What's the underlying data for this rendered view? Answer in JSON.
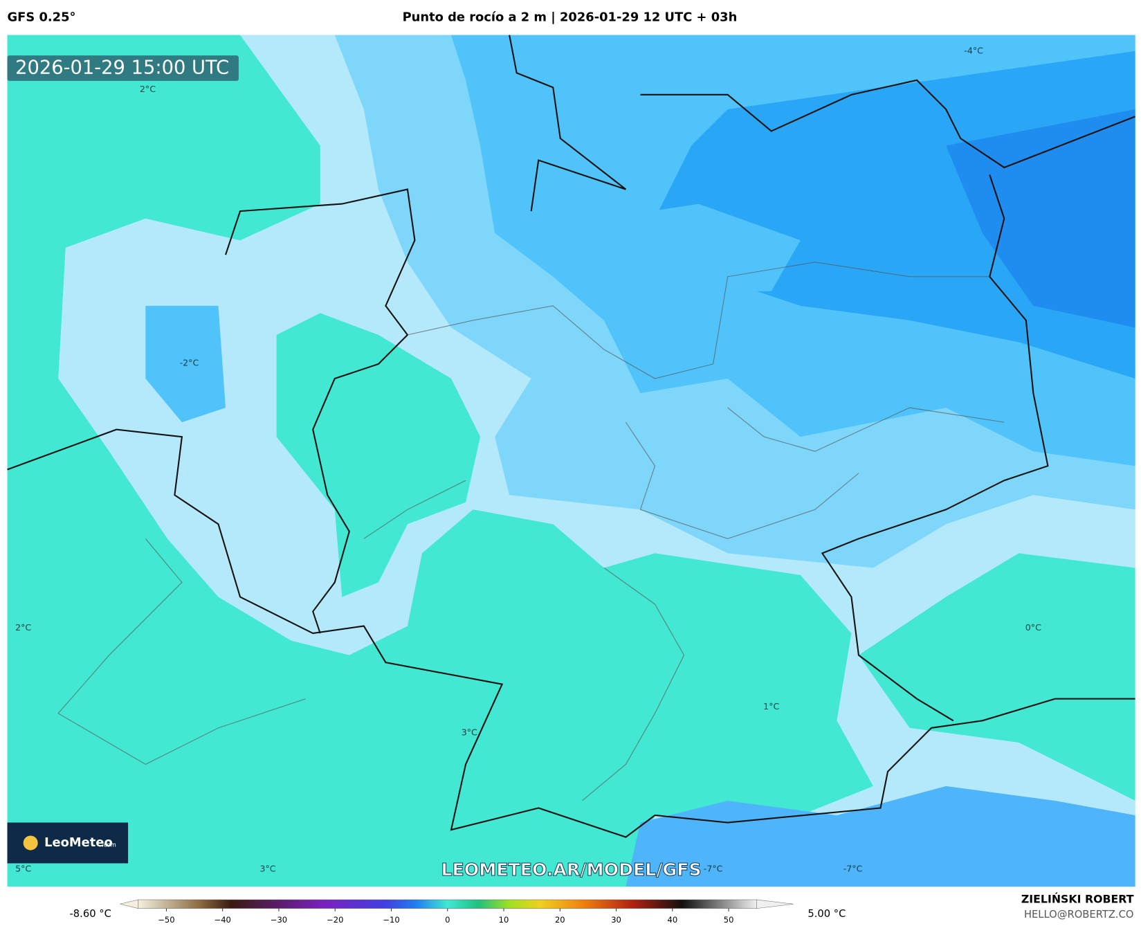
{
  "header": {
    "model": "GFS 0.25°",
    "title": "Punto de rocío a 2 m | 2026-01-29 12 UTC + 03h"
  },
  "timestamp": "2026-01-29 15:00 UTC",
  "contour_labels": [
    "2°C",
    "-4°C",
    "-2°C",
    "2°C",
    "0°C",
    "1°C",
    "3°C",
    "5°C",
    "3°C",
    "-7°C",
    "-7°C"
  ],
  "logo": {
    "name": "LeoMeteo",
    "suffix": ".com"
  },
  "watermark": "LEOMETEO.AR/MODEL/GFS",
  "colorbar": {
    "range": [
      -55,
      55
    ],
    "ticks": [
      {
        "value": -50,
        "label": "−50"
      },
      {
        "value": -40,
        "label": "−40"
      },
      {
        "value": -30,
        "label": "−30"
      },
      {
        "value": -20,
        "label": "−20"
      },
      {
        "value": -10,
        "label": "−10"
      },
      0,
      10,
      20,
      30,
      40,
      50
    ],
    "min_label": "-8.60 °C",
    "max_label": "5.00 °C"
  },
  "credit": {
    "author": "ZIELIŃSKI ROBERT",
    "email": "HELLO@ROBERTZ.CO"
  }
}
